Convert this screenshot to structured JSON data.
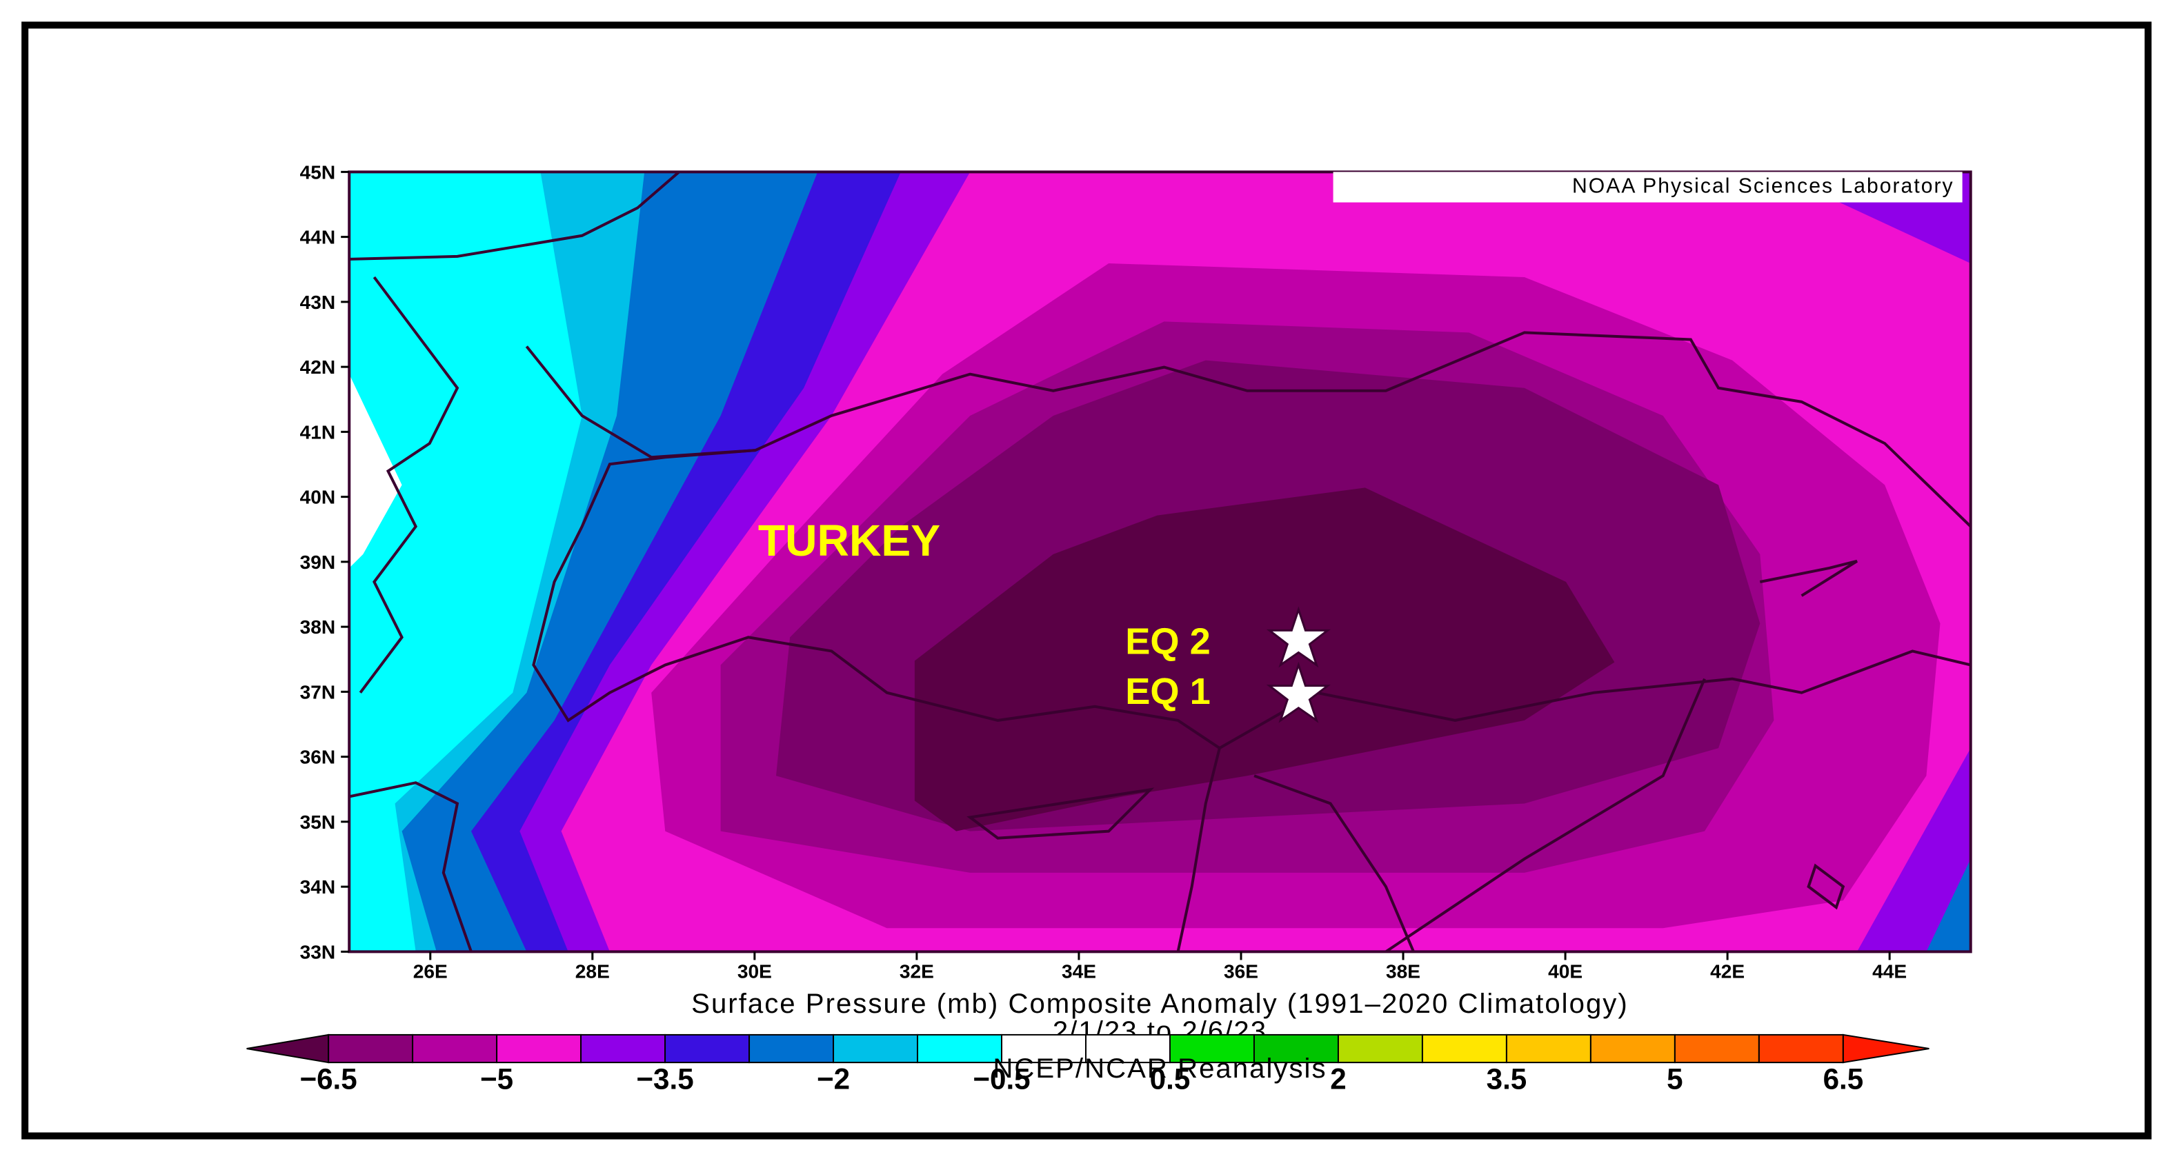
{
  "map": {
    "credit": "NOAA Physical Sciences Laboratory",
    "country_label": "TURKEY",
    "markers": [
      "EQ 2",
      "EQ 1"
    ],
    "lat_labels": [
      "45N",
      "44N",
      "43N",
      "42N",
      "41N",
      "40N",
      "39N",
      "38N",
      "37N",
      "36N",
      "35N",
      "34N",
      "33N"
    ],
    "lon_labels": [
      "26E",
      "28E",
      "30E",
      "32E",
      "34E",
      "36E",
      "38E",
      "40E",
      "42E",
      "44E"
    ],
    "caption": "Surface Pressure (mb) Composite Anomaly (1991–2020 Climatology)",
    "dates": "2/1/23 to 2/6/23",
    "source": "NCEP/NCAR Reanalysis"
  },
  "colorbar": {
    "labels": [
      "−6.5",
      "−5",
      "−3.5",
      "−2",
      "−0.5",
      "0.5",
      "2",
      "3.5",
      "5",
      "6.5"
    ],
    "low_color": "#5a0045",
    "colors": [
      "#8a0078",
      "#b400a0",
      "#f010d0",
      "#9000e8",
      "#3a10e0",
      "#0070d0",
      "#00c0e8",
      "#00ffff",
      "#ffffff",
      "#ffffff",
      "#00e000",
      "#00c400",
      "#b4dc00",
      "#ffe600",
      "#ffc800",
      "#ffa000",
      "#ff6a00",
      "#ff3c00"
    ],
    "high_color": "#ff1a00"
  }
}
